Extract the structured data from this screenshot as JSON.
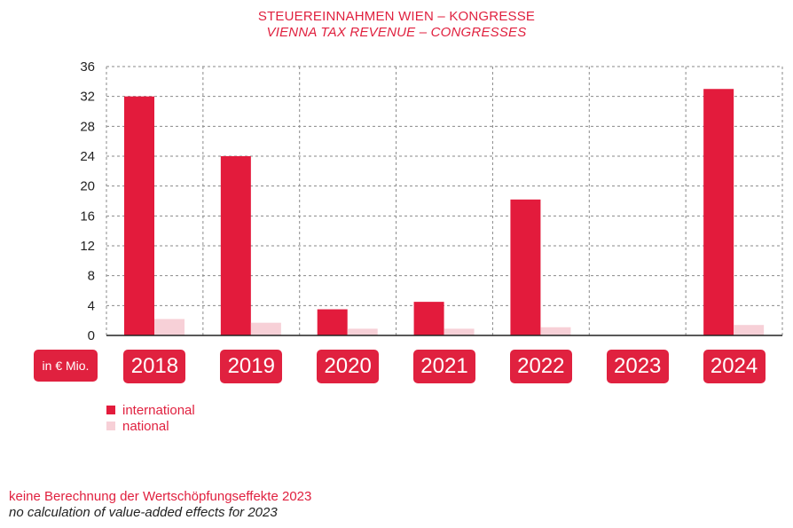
{
  "colors": {
    "international": "#e31b3c",
    "national": "#f7d0d7",
    "text_accent": "#e0213f"
  },
  "unit_label": "in € Mio.",
  "footnote": {
    "de": "keine Berechnung der Wertschöpfungseffekte 2023",
    "en": "no calculation of value-added effects for 2023"
  },
  "chart_data": {
    "type": "bar",
    "title": "STEUEREINNAHMEN WIEN –  KONGRESSE",
    "subtitle": "VIENNA TAX REVENUE – CONGRESSES",
    "categories": [
      "2018",
      "2019",
      "2020",
      "2021",
      "2022",
      "2023",
      "2024"
    ],
    "series": [
      {
        "name": "international",
        "values": [
          32,
          24,
          3.5,
          4.5,
          18.2,
          null,
          33
        ]
      },
      {
        "name": "national",
        "values": [
          2.2,
          1.7,
          0.9,
          0.9,
          1.1,
          null,
          1.4
        ]
      }
    ],
    "ylim": [
      0,
      36
    ],
    "yticks": [
      "0",
      "4",
      "8",
      "12",
      "16",
      "20",
      "24",
      "28",
      "32",
      "36"
    ],
    "ylabel": "in € Mio.",
    "grid": true,
    "legend": "bottom-left"
  }
}
